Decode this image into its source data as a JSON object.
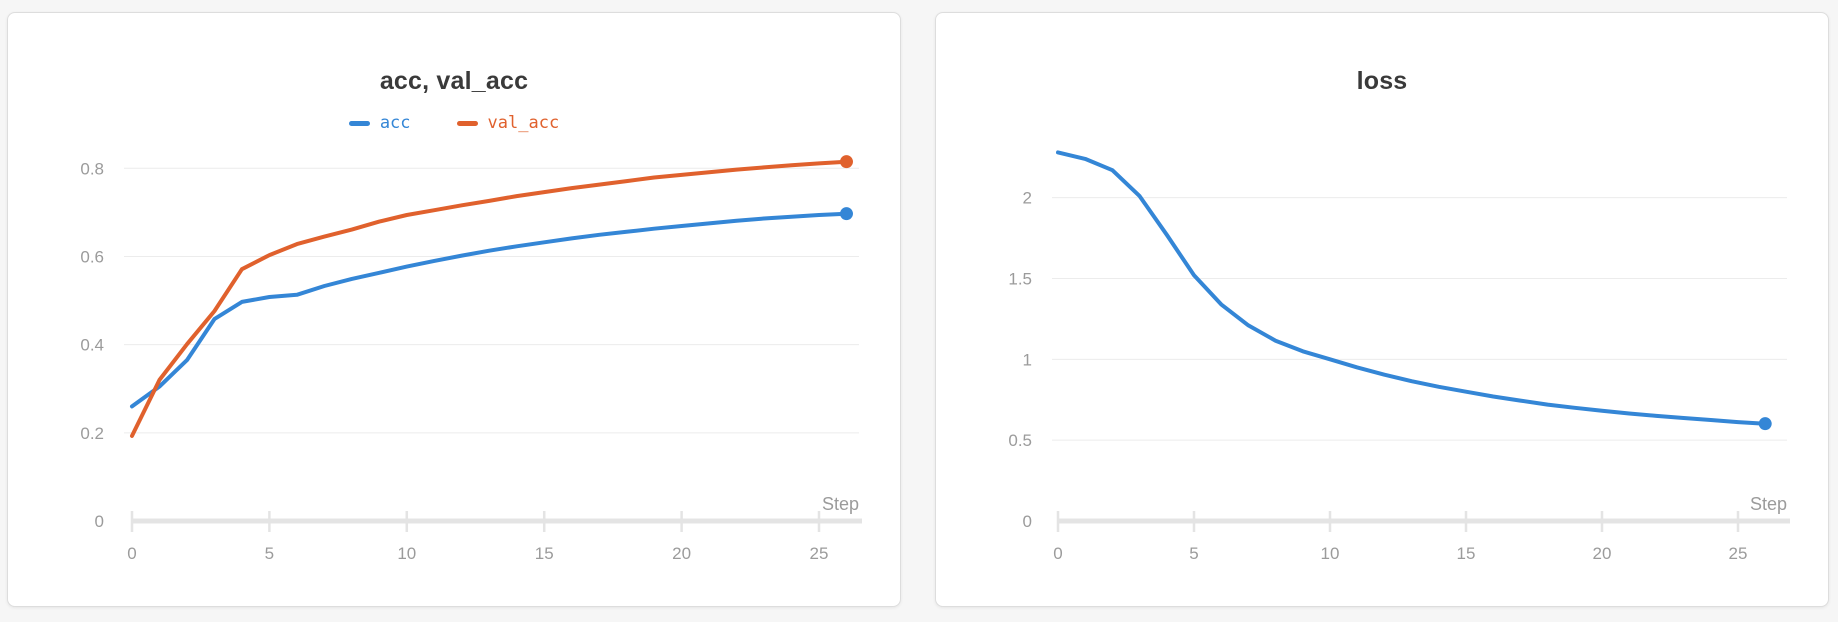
{
  "colors": {
    "series_blue": "#3486d6",
    "series_orange": "#e0612d",
    "grid_line": "#ececec",
    "axis_line": "#e4e4e4",
    "tick_text": "#9b9b9b",
    "title_text": "#3a3a3a",
    "panel_border": "#dddddd",
    "panel_bg": "#ffffff",
    "page_bg": "#f6f6f6"
  },
  "chart_data": [
    {
      "type": "line",
      "title": "acc, val_acc",
      "xlabel": "Step",
      "show_legend": true,
      "grid": true,
      "legend_position": "top",
      "x": [
        0,
        1,
        2,
        3,
        4,
        5,
        6,
        7,
        8,
        9,
        10,
        11,
        12,
        13,
        14,
        15,
        16,
        17,
        18,
        19,
        20,
        21,
        22,
        23,
        24,
        25,
        26
      ],
      "x_ticks": {
        "values": [
          0,
          5,
          10,
          15,
          20,
          25
        ],
        "labels": [
          "0",
          "5",
          "10",
          "15",
          "20",
          "25"
        ]
      },
      "y_ticks": {
        "values": [
          0,
          0.2,
          0.4,
          0.6,
          0.8
        ],
        "labels": [
          "0",
          "0.2",
          "0.4",
          "0.6",
          "0.8"
        ]
      },
      "ylim": [
        0,
        0.88
      ],
      "series": [
        {
          "name": "acc",
          "color": "#3486d6",
          "values": [
            0.26,
            0.305,
            0.365,
            0.458,
            0.497,
            0.508,
            0.513,
            0.533,
            0.549,
            0.563,
            0.577,
            0.59,
            0.602,
            0.613,
            0.623,
            0.632,
            0.641,
            0.649,
            0.656,
            0.663,
            0.669,
            0.675,
            0.681,
            0.686,
            0.69,
            0.694,
            0.697
          ]
        },
        {
          "name": "val_acc",
          "color": "#e0612d",
          "values": [
            0.193,
            0.32,
            0.401,
            0.476,
            0.571,
            0.603,
            0.628,
            0.645,
            0.661,
            0.679,
            0.694,
            0.705,
            0.716,
            0.726,
            0.737,
            0.746,
            0.755,
            0.763,
            0.771,
            0.779,
            0.785,
            0.791,
            0.797,
            0.802,
            0.807,
            0.811,
            0.815
          ]
        }
      ]
    },
    {
      "type": "line",
      "title": "loss",
      "xlabel": "Step",
      "show_legend": false,
      "grid": true,
      "x": [
        0,
        1,
        2,
        3,
        4,
        5,
        6,
        7,
        8,
        9,
        10,
        11,
        12,
        13,
        14,
        15,
        16,
        17,
        18,
        19,
        20,
        21,
        22,
        23,
        24,
        25,
        26
      ],
      "x_ticks": {
        "values": [
          0,
          5,
          10,
          15,
          20,
          25
        ],
        "labels": [
          "0",
          "5",
          "10",
          "15",
          "20",
          "25"
        ]
      },
      "y_ticks": {
        "values": [
          0,
          0.5,
          1,
          1.5,
          2
        ],
        "labels": [
          "0",
          "0.5",
          "1",
          "1.5",
          "2"
        ]
      },
      "ylim": [
        0,
        2.4
      ],
      "series": [
        {
          "name": "loss",
          "color": "#3486d6",
          "values": [
            2.28,
            2.24,
            2.17,
            2.01,
            1.77,
            1.52,
            1.34,
            1.21,
            1.115,
            1.05,
            1.0,
            0.95,
            0.905,
            0.865,
            0.83,
            0.8,
            0.77,
            0.745,
            0.72,
            0.7,
            0.682,
            0.665,
            0.65,
            0.637,
            0.625,
            0.612,
            0.602
          ]
        }
      ]
    }
  ]
}
